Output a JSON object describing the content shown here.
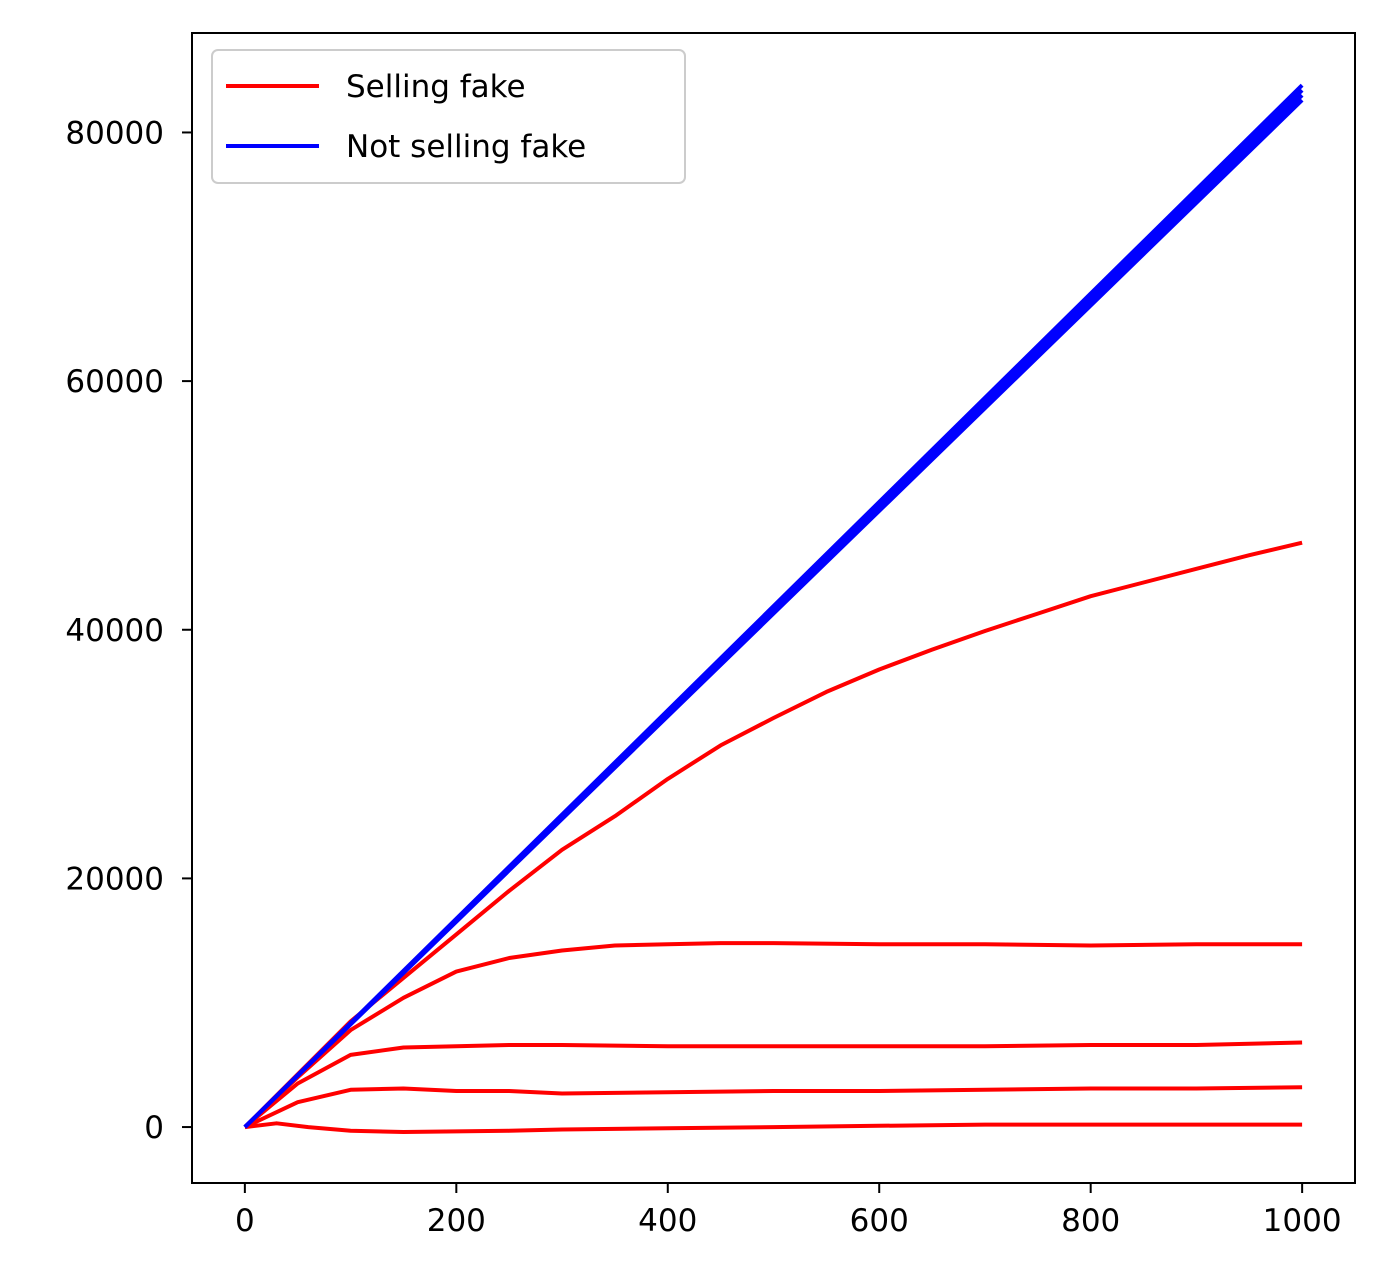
{
  "chart_data": {
    "type": "line",
    "title": "",
    "xlabel": "",
    "ylabel": "",
    "xlim": [
      -50,
      1050
    ],
    "ylim": [
      -4500,
      88000
    ],
    "xticks": [
      0,
      200,
      400,
      600,
      800,
      1000
    ],
    "yticks": [
      0,
      20000,
      40000,
      60000,
      80000
    ],
    "grid": false,
    "legend": {
      "position": "top-left",
      "entries": [
        {
          "name": "Selling fake",
          "color": "#ff0000"
        },
        {
          "name": "Not selling fake",
          "color": "#0000ff"
        }
      ]
    },
    "series": [
      {
        "group": "Selling fake",
        "color": "#ff0000",
        "x": [
          0,
          100,
          200,
          250,
          300,
          350,
          400,
          450,
          500,
          550,
          600,
          650,
          700,
          750,
          800,
          850,
          900,
          950,
          1000
        ],
        "y": [
          0,
          8500,
          15500,
          19000,
          22300,
          25000,
          28000,
          30700,
          32900,
          35000,
          36800,
          38400,
          39900,
          41300,
          42700,
          43800,
          44900,
          46000,
          47000
        ]
      },
      {
        "group": "Selling fake",
        "color": "#ff0000",
        "x": [
          0,
          50,
          100,
          150,
          200,
          250,
          300,
          350,
          400,
          450,
          500,
          600,
          700,
          800,
          900,
          1000
        ],
        "y": [
          0,
          4000,
          7800,
          10400,
          12500,
          13600,
          14200,
          14600,
          14700,
          14800,
          14800,
          14700,
          14700,
          14600,
          14700,
          14700
        ]
      },
      {
        "group": "Selling fake",
        "color": "#ff0000",
        "x": [
          0,
          50,
          100,
          150,
          200,
          250,
          300,
          400,
          500,
          600,
          700,
          800,
          900,
          1000
        ],
        "y": [
          0,
          3500,
          5800,
          6400,
          6500,
          6600,
          6600,
          6500,
          6500,
          6500,
          6500,
          6600,
          6600,
          6800
        ]
      },
      {
        "group": "Selling fake",
        "color": "#ff0000",
        "x": [
          0,
          50,
          100,
          150,
          200,
          250,
          300,
          400,
          500,
          600,
          700,
          800,
          900,
          1000
        ],
        "y": [
          0,
          2000,
          3000,
          3100,
          2900,
          2900,
          2700,
          2800,
          2900,
          2900,
          3000,
          3100,
          3100,
          3200
        ]
      },
      {
        "group": "Selling fake",
        "color": "#ff0000",
        "x": [
          0,
          30,
          60,
          100,
          150,
          200,
          250,
          300,
          400,
          500,
          600,
          700,
          800,
          900,
          1000
        ],
        "y": [
          0,
          300,
          0,
          -300,
          -400,
          -350,
          -300,
          -200,
          -100,
          0,
          100,
          200,
          200,
          200,
          200
        ]
      },
      {
        "group": "Not selling fake",
        "color": "#0000ff",
        "x": [
          0,
          1000
        ],
        "y": [
          0,
          83800
        ]
      },
      {
        "group": "Not selling fake",
        "color": "#0000ff",
        "x": [
          0,
          1000
        ],
        "y": [
          0,
          83400
        ]
      },
      {
        "group": "Not selling fake",
        "color": "#0000ff",
        "x": [
          0,
          1000
        ],
        "y": [
          0,
          83000
        ]
      },
      {
        "group": "Not selling fake",
        "color": "#0000ff",
        "x": [
          0,
          1000
        ],
        "y": [
          0,
          82600
        ]
      }
    ]
  }
}
